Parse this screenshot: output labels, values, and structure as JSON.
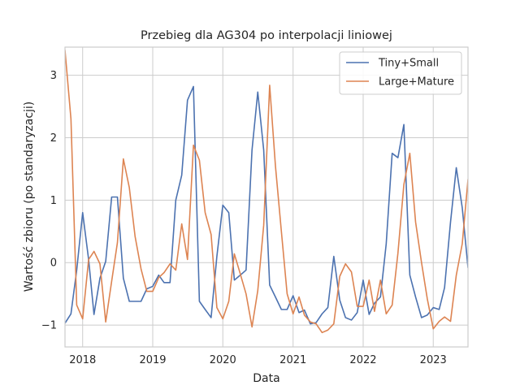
{
  "chart_data": {
    "type": "line",
    "title": "Przebieg dla AG304 po interpolacji liniowej",
    "xlabel": "Data",
    "ylabel": "Wartość zbioru (po standaryzacji)",
    "xlim": [
      "2017-10-01",
      "2023-07-01"
    ],
    "ylim": [
      -1.35,
      3.45
    ],
    "x_ticks": [
      "2018-01-01",
      "2019-01-01",
      "2020-01-01",
      "2021-01-01",
      "2022-01-01",
      "2023-01-01"
    ],
    "x_tick_labels": [
      "2018",
      "2019",
      "2020",
      "2021",
      "2022",
      "2023"
    ],
    "y_ticks": [
      -1,
      0,
      1,
      2,
      3
    ],
    "grid": true,
    "legend_position": "top-right",
    "series": [
      {
        "name": "Tiny+Small",
        "color": "#4c72b0",
        "points": [
          [
            "2017-10-01",
            -0.97
          ],
          [
            "2017-11-01",
            -0.82
          ],
          [
            "2017-12-01",
            -0.12
          ],
          [
            "2018-01-01",
            0.8
          ],
          [
            "2018-02-01",
            0.05
          ],
          [
            "2018-03-01",
            -0.83
          ],
          [
            "2018-04-01",
            -0.25
          ],
          [
            "2018-05-01",
            0.02
          ],
          [
            "2018-06-01",
            1.05
          ],
          [
            "2018-07-01",
            1.05
          ],
          [
            "2018-08-01",
            -0.25
          ],
          [
            "2018-09-01",
            -0.62
          ],
          [
            "2018-10-01",
            -0.62
          ],
          [
            "2018-11-01",
            -0.62
          ],
          [
            "2018-12-01",
            -0.42
          ],
          [
            "2019-01-01",
            -0.38
          ],
          [
            "2019-02-01",
            -0.2
          ],
          [
            "2019-03-01",
            -0.32
          ],
          [
            "2019-04-01",
            -0.32
          ],
          [
            "2019-05-01",
            1.0
          ],
          [
            "2019-06-01",
            1.4
          ],
          [
            "2019-07-01",
            2.6
          ],
          [
            "2019-08-01",
            2.82
          ],
          [
            "2019-09-01",
            -0.62
          ],
          [
            "2019-10-01",
            -0.75
          ],
          [
            "2019-11-01",
            -0.88
          ],
          [
            "2019-12-01",
            0.1
          ],
          [
            "2020-01-01",
            0.92
          ],
          [
            "2020-02-01",
            0.8
          ],
          [
            "2020-03-01",
            -0.28
          ],
          [
            "2020-04-01",
            -0.2
          ],
          [
            "2020-05-01",
            -0.12
          ],
          [
            "2020-06-01",
            1.8
          ],
          [
            "2020-07-01",
            2.73
          ],
          [
            "2020-08-01",
            1.8
          ],
          [
            "2020-09-01",
            -0.36
          ],
          [
            "2020-10-01",
            -0.55
          ],
          [
            "2020-11-01",
            -0.75
          ],
          [
            "2020-12-01",
            -0.75
          ],
          [
            "2021-01-01",
            -0.53
          ],
          [
            "2021-02-01",
            -0.8
          ],
          [
            "2021-03-01",
            -0.76
          ],
          [
            "2021-04-01",
            -0.98
          ],
          [
            "2021-05-01",
            -0.96
          ],
          [
            "2021-06-01",
            -0.82
          ],
          [
            "2021-07-01",
            -0.72
          ],
          [
            "2021-08-01",
            0.1
          ],
          [
            "2021-09-01",
            -0.6
          ],
          [
            "2021-10-01",
            -0.88
          ],
          [
            "2021-11-01",
            -0.92
          ],
          [
            "2021-12-01",
            -0.8
          ],
          [
            "2022-01-01",
            -0.28
          ],
          [
            "2022-02-01",
            -0.83
          ],
          [
            "2022-03-01",
            -0.65
          ],
          [
            "2022-04-01",
            -0.55
          ],
          [
            "2022-05-01",
            0.3
          ],
          [
            "2022-06-01",
            1.75
          ],
          [
            "2022-07-01",
            1.68
          ],
          [
            "2022-08-01",
            2.21
          ],
          [
            "2022-09-01",
            -0.2
          ],
          [
            "2022-10-01",
            -0.55
          ],
          [
            "2022-11-01",
            -0.88
          ],
          [
            "2022-12-01",
            -0.84
          ],
          [
            "2023-01-01",
            -0.72
          ],
          [
            "2023-02-01",
            -0.75
          ],
          [
            "2023-03-01",
            -0.4
          ],
          [
            "2023-04-01",
            0.65
          ],
          [
            "2023-05-01",
            1.52
          ],
          [
            "2023-06-01",
            0.88
          ],
          [
            "2023-07-01",
            -0.08
          ]
        ]
      },
      {
        "name": "Large+Mature",
        "color": "#dd8452",
        "points": [
          [
            "2017-10-01",
            3.4
          ],
          [
            "2017-11-01",
            2.3
          ],
          [
            "2017-12-01",
            -0.68
          ],
          [
            "2018-01-01",
            -0.9
          ],
          [
            "2018-02-01",
            0.05
          ],
          [
            "2018-03-01",
            0.18
          ],
          [
            "2018-04-01",
            -0.02
          ],
          [
            "2018-05-01",
            -0.95
          ],
          [
            "2018-06-01",
            -0.3
          ],
          [
            "2018-07-01",
            0.32
          ],
          [
            "2018-08-01",
            1.66
          ],
          [
            "2018-09-01",
            1.2
          ],
          [
            "2018-10-01",
            0.42
          ],
          [
            "2018-11-01",
            -0.1
          ],
          [
            "2018-12-01",
            -0.46
          ],
          [
            "2019-01-01",
            -0.46
          ],
          [
            "2019-02-01",
            -0.24
          ],
          [
            "2019-03-01",
            -0.16
          ],
          [
            "2019-04-01",
            -0.02
          ],
          [
            "2019-05-01",
            -0.12
          ],
          [
            "2019-06-01",
            0.62
          ],
          [
            "2019-07-01",
            0.05
          ],
          [
            "2019-08-01",
            1.88
          ],
          [
            "2019-09-01",
            1.64
          ],
          [
            "2019-10-01",
            0.8
          ],
          [
            "2019-11-01",
            0.45
          ],
          [
            "2019-12-01",
            -0.72
          ],
          [
            "2020-01-01",
            -0.9
          ],
          [
            "2020-02-01",
            -0.62
          ],
          [
            "2020-03-01",
            0.14
          ],
          [
            "2020-04-01",
            -0.18
          ],
          [
            "2020-05-01",
            -0.5
          ],
          [
            "2020-06-01",
            -1.03
          ],
          [
            "2020-07-01",
            -0.45
          ],
          [
            "2020-08-01",
            0.6
          ],
          [
            "2020-09-01",
            2.84
          ],
          [
            "2020-10-01",
            1.55
          ],
          [
            "2020-11-01",
            0.5
          ],
          [
            "2020-12-01",
            -0.5
          ],
          [
            "2021-01-01",
            -0.82
          ],
          [
            "2021-02-01",
            -0.55
          ],
          [
            "2021-03-01",
            -0.84
          ],
          [
            "2021-04-01",
            -0.95
          ],
          [
            "2021-05-01",
            -0.98
          ],
          [
            "2021-06-01",
            -1.12
          ],
          [
            "2021-07-01",
            -1.08
          ],
          [
            "2021-08-01",
            -0.98
          ],
          [
            "2021-09-01",
            -0.22
          ],
          [
            "2021-10-01",
            -0.02
          ],
          [
            "2021-11-01",
            -0.15
          ],
          [
            "2021-12-01",
            -0.7
          ],
          [
            "2022-01-01",
            -0.7
          ],
          [
            "2022-02-01",
            -0.28
          ],
          [
            "2022-03-01",
            -0.78
          ],
          [
            "2022-04-01",
            -0.28
          ],
          [
            "2022-05-01",
            -0.82
          ],
          [
            "2022-06-01",
            -0.68
          ],
          [
            "2022-07-01",
            0.15
          ],
          [
            "2022-08-01",
            1.25
          ],
          [
            "2022-09-01",
            1.75
          ],
          [
            "2022-10-01",
            0.65
          ],
          [
            "2022-11-01",
            0.0
          ],
          [
            "2022-12-01",
            -0.58
          ],
          [
            "2023-01-01",
            -1.06
          ],
          [
            "2023-02-01",
            -0.94
          ],
          [
            "2023-03-01",
            -0.87
          ],
          [
            "2023-04-01",
            -0.94
          ],
          [
            "2023-05-01",
            -0.2
          ],
          [
            "2023-06-01",
            0.3
          ],
          [
            "2023-07-01",
            1.33
          ]
        ]
      }
    ]
  }
}
